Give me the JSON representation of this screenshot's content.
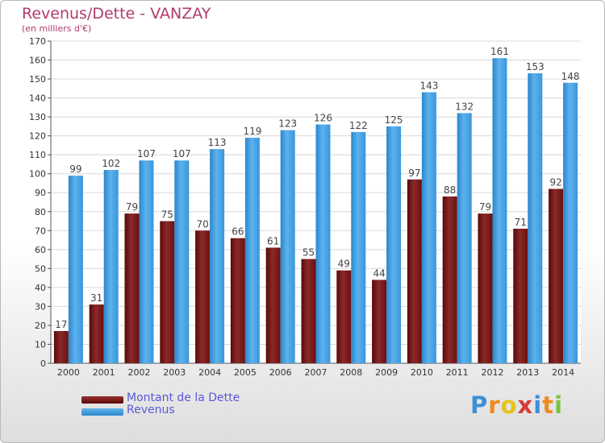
{
  "chart_data": {
    "type": "bar",
    "title": "Revenus/Dette - VANZAY",
    "subtitle": "(en milliers d'€)",
    "categories": [
      "2000",
      "2001",
      "2002",
      "2003",
      "2004",
      "2005",
      "2006",
      "2007",
      "2008",
      "2009",
      "2010",
      "2011",
      "2012",
      "2013",
      "2014"
    ],
    "series": [
      {
        "name": "Montant de la Dette",
        "color": "#7a1a1a",
        "values": [
          17,
          31,
          79,
          75,
          70,
          66,
          61,
          55,
          49,
          44,
          97,
          88,
          79,
          71,
          92
        ]
      },
      {
        "name": "Revenus",
        "color": "#3d9ee0",
        "values": [
          99,
          102,
          107,
          107,
          113,
          119,
          123,
          126,
          122,
          125,
          143,
          132,
          161,
          153,
          148
        ]
      }
    ],
    "ylim": [
      0,
      170
    ],
    "yticks": [
      0,
      10,
      20,
      30,
      40,
      50,
      60,
      70,
      80,
      90,
      100,
      110,
      120,
      130,
      140,
      150,
      160,
      170
    ],
    "grid": true,
    "legend": "bottom-left"
  },
  "logo": {
    "letters": [
      "P",
      "r",
      "o",
      "x",
      "i",
      "t",
      "i"
    ],
    "colors": [
      "#3d8fd6",
      "#f08a1c",
      "#e8c21a",
      "#d63a3a",
      "#3d8fd6",
      "#f08a1c",
      "#7cc242"
    ]
  }
}
